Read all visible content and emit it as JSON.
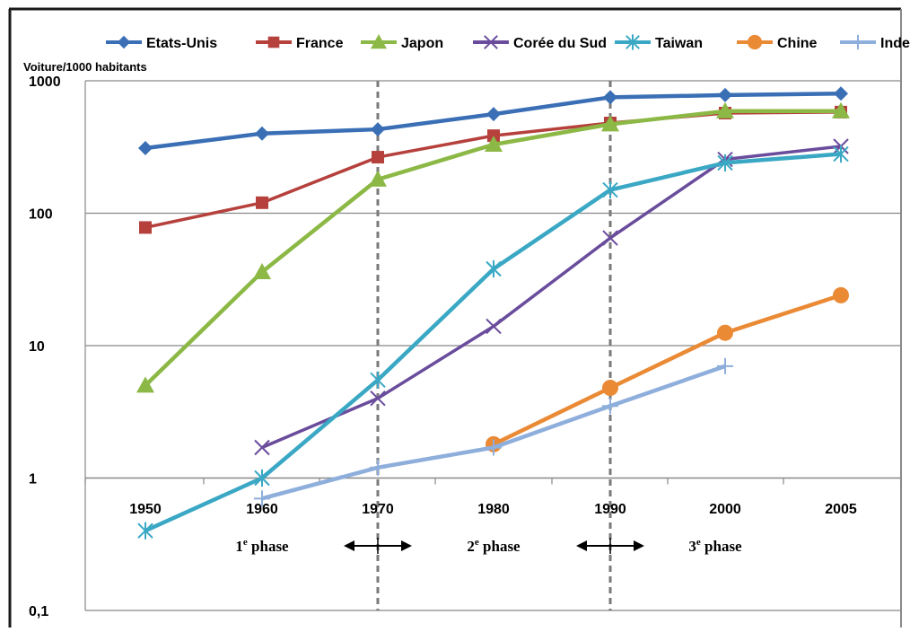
{
  "chart_data": {
    "type": "line",
    "ylabel": "Voiture/1000 habitants",
    "yscale": "log",
    "ylim": [
      0.1,
      1000
    ],
    "yticks": [
      {
        "value": 1000,
        "label": "1000"
      },
      {
        "value": 100,
        "label": "100"
      },
      {
        "value": 10,
        "label": "10"
      },
      {
        "value": 1,
        "label": "1"
      },
      {
        "value": 0.1,
        "label": "0,1"
      }
    ],
    "categories": [
      "1950",
      "1960",
      "1970",
      "1980",
      "1990",
      "2000",
      "2005"
    ],
    "grid": true,
    "legend_position": "top",
    "series": [
      {
        "name": "Etats-Unis",
        "color": "#3a6fb5",
        "marker": "diamond",
        "values": [
          310,
          400,
          430,
          560,
          750,
          780,
          800
        ]
      },
      {
        "name": "France",
        "color": "#b5403c",
        "marker": "square",
        "values": [
          78,
          120,
          265,
          385,
          480,
          570,
          580
        ]
      },
      {
        "name": "Japon",
        "color": "#8cb845",
        "marker": "triangle",
        "values": [
          5,
          36,
          180,
          330,
          470,
          590,
          590
        ]
      },
      {
        "name": "Corée du Sud",
        "color": "#6a4c9c",
        "marker": "x",
        "values": [
          null,
          1.7,
          4,
          14,
          65,
          255,
          320
        ]
      },
      {
        "name": "Taiwan",
        "color": "#3aa8c4",
        "marker": "star",
        "values": [
          0.4,
          1,
          5.5,
          38,
          150,
          240,
          280
        ]
      },
      {
        "name": "Chine",
        "color": "#ea8a35",
        "marker": "circle",
        "values": [
          null,
          null,
          null,
          1.8,
          4.8,
          12.5,
          24
        ]
      },
      {
        "name": "Inde",
        "color": "#8eaedc",
        "marker": "plus",
        "values": [
          null,
          0.7,
          1.2,
          1.7,
          3.5,
          7,
          null
        ]
      }
    ],
    "phase_lines": [
      "1970",
      "1990"
    ],
    "annotations": [
      {
        "label": "1",
        "sup": "e",
        "rest": " phase",
        "between": [
          "1960",
          "1960"
        ]
      },
      {
        "label": "2",
        "sup": "e",
        "rest": " phase",
        "between": [
          "1980",
          "1980"
        ]
      },
      {
        "label": "3",
        "sup": "e",
        "rest": " phase",
        "between": [
          "2000",
          "2000"
        ]
      }
    ]
  }
}
